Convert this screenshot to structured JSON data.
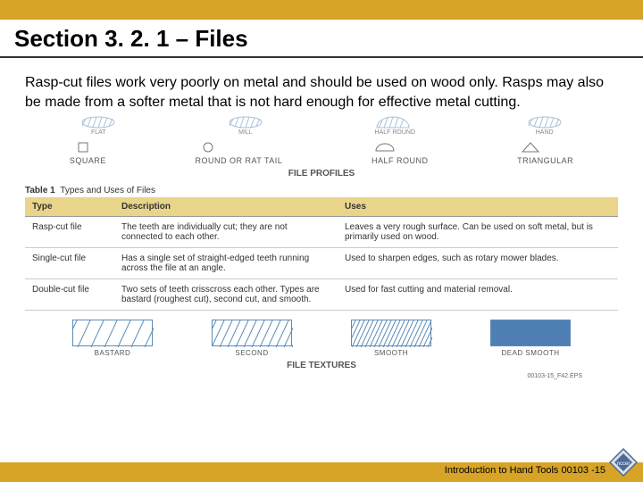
{
  "colors": {
    "gold": "#d7a427",
    "tableHeader": "#e8d58a",
    "blueLine": "#5b8bb5",
    "blueFill": "#4f7fb5",
    "text": "#333333",
    "labelGray": "#555555"
  },
  "header": {
    "title": "Section 3. 2. 1 – Files"
  },
  "intro": {
    "text": "Rasp-cut files work very poorly on metal and should be used on wood only. Rasps may also be made from a softer metal that is not hard enough for effective metal cutting."
  },
  "profiles": {
    "caption": "FILE PROFILES",
    "items": [
      {
        "label": "SQUARE"
      },
      {
        "label": "ROUND OR RAT TAIL"
      },
      {
        "label": "HALF ROUND"
      },
      {
        "label": "TRIANGULAR"
      }
    ],
    "hatch_items": [
      {
        "label": "FLAT"
      },
      {
        "label": "MILL"
      },
      {
        "label": "HALF ROUND"
      },
      {
        "label": "HAND"
      }
    ]
  },
  "table": {
    "titlePrefix": "Table 1",
    "titleText": "Types and Uses of Files",
    "columns": [
      "Type",
      "Description",
      "Uses"
    ],
    "rows": [
      {
        "type": "Rasp-cut file",
        "desc": "The teeth are individually cut; they are not connected to each other.",
        "uses": "Leaves a very rough surface. Can be used on soft metal, but is primarily used on wood."
      },
      {
        "type": "Single-cut file",
        "desc": "Has a single set of straight-edged teeth running across the file at an angle.",
        "uses": "Used to sharpen edges, such as rotary mower blades."
      },
      {
        "type": "Double-cut file",
        "desc": "Two sets of teeth crisscross each other. Types are bastard (roughest cut), second cut, and smooth.",
        "uses": "Used for fast cutting and material removal."
      }
    ]
  },
  "textures": {
    "caption": "FILE TEXTURES",
    "items": [
      {
        "label": "BASTARD",
        "density": 6
      },
      {
        "label": "SECOND",
        "density": 10
      },
      {
        "label": "SMOOTH",
        "density": 18
      },
      {
        "label": "DEAD SMOOTH",
        "density": 40
      }
    ]
  },
  "figRef": "00103-15_F42.EPS",
  "footer": {
    "text": "Introduction to Hand Tools 00103 -15"
  }
}
